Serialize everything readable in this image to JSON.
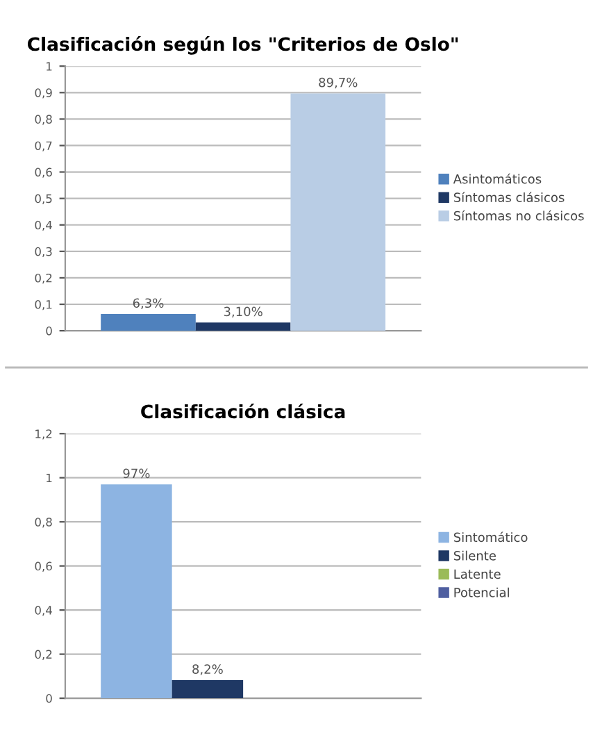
{
  "chart_data": [
    {
      "type": "bar",
      "title": "Clasificación según los \"Criterios de Oslo\"",
      "categories": [
        null
      ],
      "ylim": [
        0,
        1
      ],
      "yticks": [
        0,
        {
          "value": 0.1,
          "label": "0,1"
        },
        {
          "value": 0.2,
          "label": "0,2"
        },
        {
          "value": 0.3,
          "label": "0,3"
        },
        {
          "value": 0.4,
          "label": "0,4"
        },
        {
          "value": 0.5,
          "label": "0,5"
        },
        {
          "value": 0.6,
          "label": "0,6"
        },
        {
          "value": 0.7,
          "label": "0,7"
        },
        {
          "value": 0.8,
          "label": "0,8"
        },
        {
          "value": 0.9,
          "label": "0,9"
        },
        1
      ],
      "grid": "y",
      "legend": "right",
      "tick_labels": "y",
      "series": [
        {
          "name": "Asintomáticos",
          "color": "#4f81bd",
          "values": [
            0.063
          ],
          "value_labels": [
            "6,3%"
          ]
        },
        {
          "name": "Síntomas clásicos",
          "color": "#1f3864",
          "values": [
            0.031
          ],
          "value_labels": [
            "3,10%"
          ]
        },
        {
          "name": "Síntomas no clásicos",
          "color": "#b9cde5",
          "values": [
            0.897
          ],
          "value_labels": [
            "89,7%"
          ]
        }
      ]
    },
    {
      "type": "bar",
      "title": "Clasificación clásica",
      "categories": [
        null
      ],
      "ylim": [
        0,
        1.2
      ],
      "yticks": [
        0,
        {
          "value": 0.2,
          "label": "0,2"
        },
        {
          "value": 0.4,
          "label": "0,4"
        },
        {
          "value": 0.6,
          "label": "0,6"
        },
        {
          "value": 0.8,
          "label": "0,8"
        },
        1,
        {
          "value": 1.2,
          "label": "1,2"
        }
      ],
      "grid": "y",
      "legend": "right",
      "tick_labels": "y",
      "series": [
        {
          "name": "Sintomático",
          "color": "#8db4e2",
          "values": [
            0.97
          ],
          "value_labels": [
            "97%"
          ]
        },
        {
          "name": "Silente",
          "color": "#1f3864",
          "values": [
            0.082
          ],
          "value_labels": [
            "8,2%"
          ]
        },
        {
          "name": "Latente",
          "color": "#9bbb59",
          "values": [
            null
          ],
          "value_labels": [
            null
          ]
        },
        {
          "name": "Potencial",
          "color": "#4f5fa0",
          "values": [
            null
          ],
          "value_labels": [
            null
          ]
        }
      ]
    }
  ]
}
